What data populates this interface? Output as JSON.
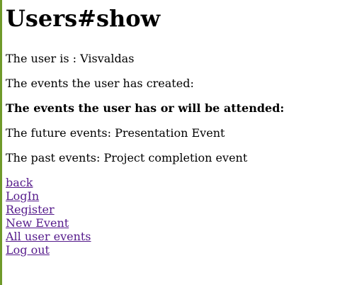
{
  "page": {
    "title": "Users#show",
    "user_line": "The user is : Visvaldas",
    "created_events_line": "The events the user has created:",
    "attended_heading": "The events the user has or will be attended:",
    "future_events_line": "The future events: Presentation Event",
    "past_events_line": "The past events: Project completion event"
  },
  "links": {
    "back": "back",
    "login": "LogIn",
    "register": "Register",
    "new_event": "New Event",
    "all_user_events": "All user events",
    "log_out": "Log out"
  },
  "colors": {
    "left_border": "#6f9a2a",
    "visited_link": "#551a8b"
  }
}
